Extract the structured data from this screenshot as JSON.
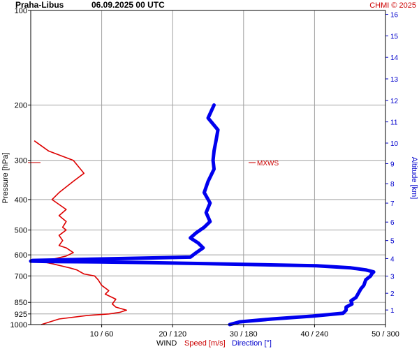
{
  "chart_data": {
    "type": "line",
    "title": "Praha-Libus",
    "subtitle": "06.09.2025 00 UTC",
    "credit": "CHMI © 2025",
    "ylabel": "Pressure [hPa]",
    "y2label": "Altitude [km]",
    "xlabel": {
      "prefix": "WIND",
      "speed": "Speed [m/s]",
      "direction": "Direction [°]"
    },
    "colors": {
      "speed": "#dd0000",
      "direction": "#0000ee",
      "grid": "#a0a0a0"
    },
    "y_scale": "log",
    "ylim": [
      1000,
      100
    ],
    "y_ticks": [
      100,
      200,
      300,
      400,
      500,
      600,
      700,
      850,
      925,
      1000
    ],
    "y2_ticks": [
      1,
      2,
      3,
      4,
      5,
      6,
      7,
      8,
      9,
      10,
      11,
      12,
      13,
      14,
      15,
      16
    ],
    "x_speed_lim": [
      0,
      50
    ],
    "x_dir_lim": [
      0,
      360
    ],
    "x_ticks": [
      "10 / 60",
      "20 / 120",
      "30 / 180",
      "40 / 240",
      "50 / 300"
    ],
    "annotation": {
      "text": "MXWS",
      "pressure": 305
    },
    "grid": true,
    "series": [
      {
        "name": "Speed [m/s]",
        "color": "#dd0000",
        "x": [
          1.5,
          4,
          8,
          11,
          12.5,
          13.5,
          12,
          11.5,
          12,
          10.5,
          11,
          10,
          9.5,
          9,
          7.5,
          6.5,
          5.5,
          3,
          1.5,
          0.5,
          3,
          5,
          6,
          5,
          4,
          4.5,
          4,
          5,
          4.5,
          5,
          4,
          5,
          3,
          4,
          6,
          7.5,
          6,
          2.5,
          0.5
        ],
        "y": [
          1000,
          960,
          935,
          925,
          915,
          900,
          880,
          860,
          830,
          800,
          780,
          750,
          720,
          700,
          690,
          670,
          660,
          640,
          630,
          625,
          620,
          605,
          590,
          570,
          560,
          540,
          520,
          500,
          490,
          470,
          450,
          430,
          400,
          380,
          350,
          330,
          300,
          280,
          260
        ]
      },
      {
        "name": "Direction [°]",
        "color": "#0000ee",
        "x": [
          202,
          212,
          245,
          286,
          317,
          320,
          320,
          326,
          325,
          330,
          332,
          335,
          338,
          340,
          345,
          346,
          348,
          340,
          325,
          290,
          180,
          120,
          70,
          20,
          0,
          2,
          162,
          168,
          175,
          170,
          162,
          168,
          176,
          182,
          178,
          182,
          176,
          180,
          186,
          185,
          186,
          188,
          190,
          180,
          186
        ],
        "y": [
          1000,
          980,
          960,
          940,
          920,
          900,
          880,
          860,
          840,
          820,
          800,
          770,
          750,
          720,
          700,
          690,
          680,
          670,
          660,
          650,
          640,
          635,
          632,
          630,
          628,
          625,
          610,
          590,
          570,
          550,
          530,
          510,
          490,
          470,
          440,
          410,
          380,
          350,
          320,
          300,
          280,
          260,
          240,
          220,
          200
        ]
      }
    ]
  }
}
